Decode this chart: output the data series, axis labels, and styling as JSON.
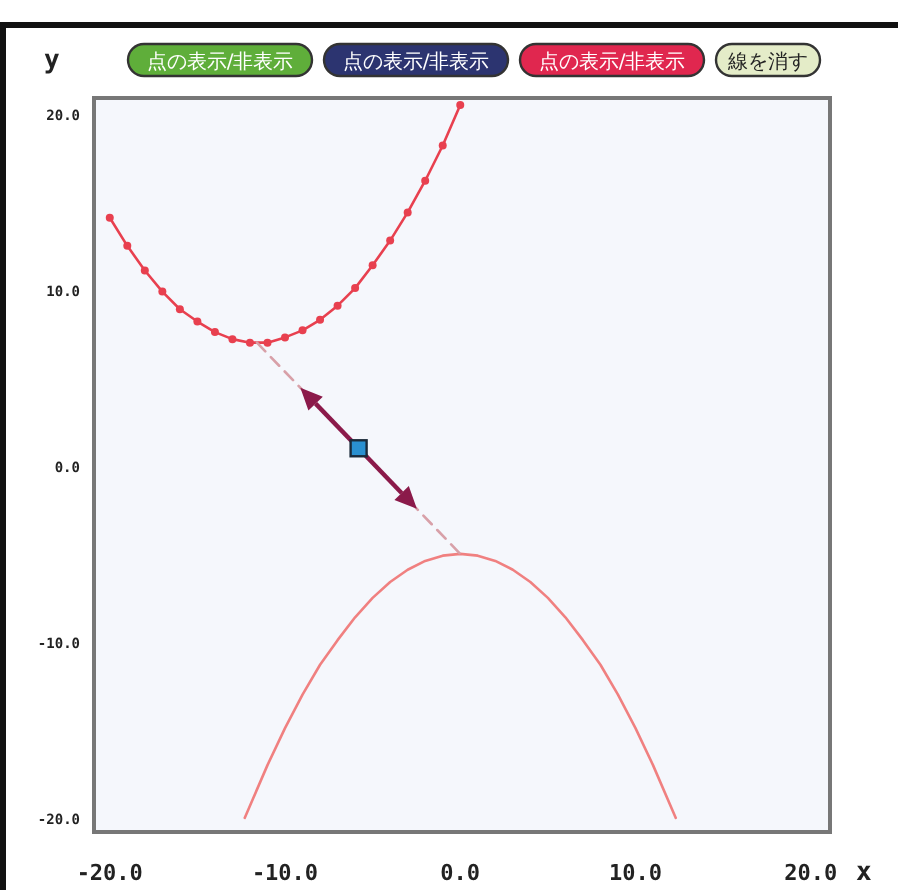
{
  "chart_data": {
    "type": "line",
    "xlabel": "x",
    "ylabel": "y",
    "annotations": [
      "点の表示/非表示",
      "点の表示/非表示",
      "点の表示/非表示",
      "線を消す"
    ],
    "xlim": [
      -20.9,
      21.1
    ],
    "ylim": [
      -20.8,
      20.9
    ],
    "xticks": [
      {
        "value": -20,
        "label": "-20.0"
      },
      {
        "value": -10,
        "label": "-10.0"
      },
      {
        "value": 0,
        "label": "0.0"
      },
      {
        "value": 10,
        "label": "10.0"
      },
      {
        "value": 20,
        "label": "20.0"
      }
    ],
    "yticks": [
      {
        "value": -20,
        "label": "-20.0"
      },
      {
        "value": -10,
        "label": "-10.0"
      },
      {
        "value": 0,
        "label": "0.0"
      },
      {
        "value": 10,
        "label": "10.0"
      },
      {
        "value": 20,
        "label": "20.0"
      }
    ],
    "grid": false,
    "series": [
      {
        "color": "#e8404f",
        "marker": "circle",
        "line_style": "solid",
        "x": [
          -20,
          -19,
          -18,
          -17,
          -16,
          -15,
          -14,
          -13,
          -12,
          -11,
          -10,
          -9,
          -8,
          -7,
          -6,
          -5,
          -4,
          -3,
          -2,
          -1,
          0
        ],
        "values": [
          14.1,
          12.5,
          11.1,
          9.9,
          8.9,
          8.2,
          7.6,
          7.2,
          7.0,
          7.0,
          7.3,
          7.7,
          8.3,
          9.1,
          10.1,
          11.4,
          12.8,
          14.4,
          16.2,
          18.2,
          20.5
        ]
      },
      {
        "color": "#f08080",
        "marker": "none",
        "line_style": "solid",
        "x": [
          -12.3,
          -11,
          -10,
          -9,
          -8,
          -7,
          -6,
          -5,
          -4,
          -3,
          -2,
          -1,
          0,
          1,
          2,
          3,
          4,
          5,
          6,
          7,
          8,
          9,
          10,
          11,
          12.3
        ],
        "values": [
          -20.0,
          -17.0,
          -14.9,
          -13.0,
          -11.3,
          -9.9,
          -8.6,
          -7.5,
          -6.6,
          -5.9,
          -5.4,
          -5.1,
          -5.0,
          -5.1,
          -5.4,
          -5.9,
          -6.6,
          -7.5,
          -8.6,
          -9.9,
          -11.3,
          -13.0,
          -14.9,
          -17.0,
          -20.0
        ]
      },
      {
        "color": "#d8a0a8",
        "marker": "none",
        "line_style": "dashed",
        "x": [
          -11.6,
          0
        ],
        "values": [
          7.0,
          -5.0
        ]
      },
      {
        "type": "scatter",
        "color": "#2a90d0",
        "marker": "square",
        "x": [
          -5.8
        ],
        "values": [
          1.0
        ]
      }
    ]
  }
}
